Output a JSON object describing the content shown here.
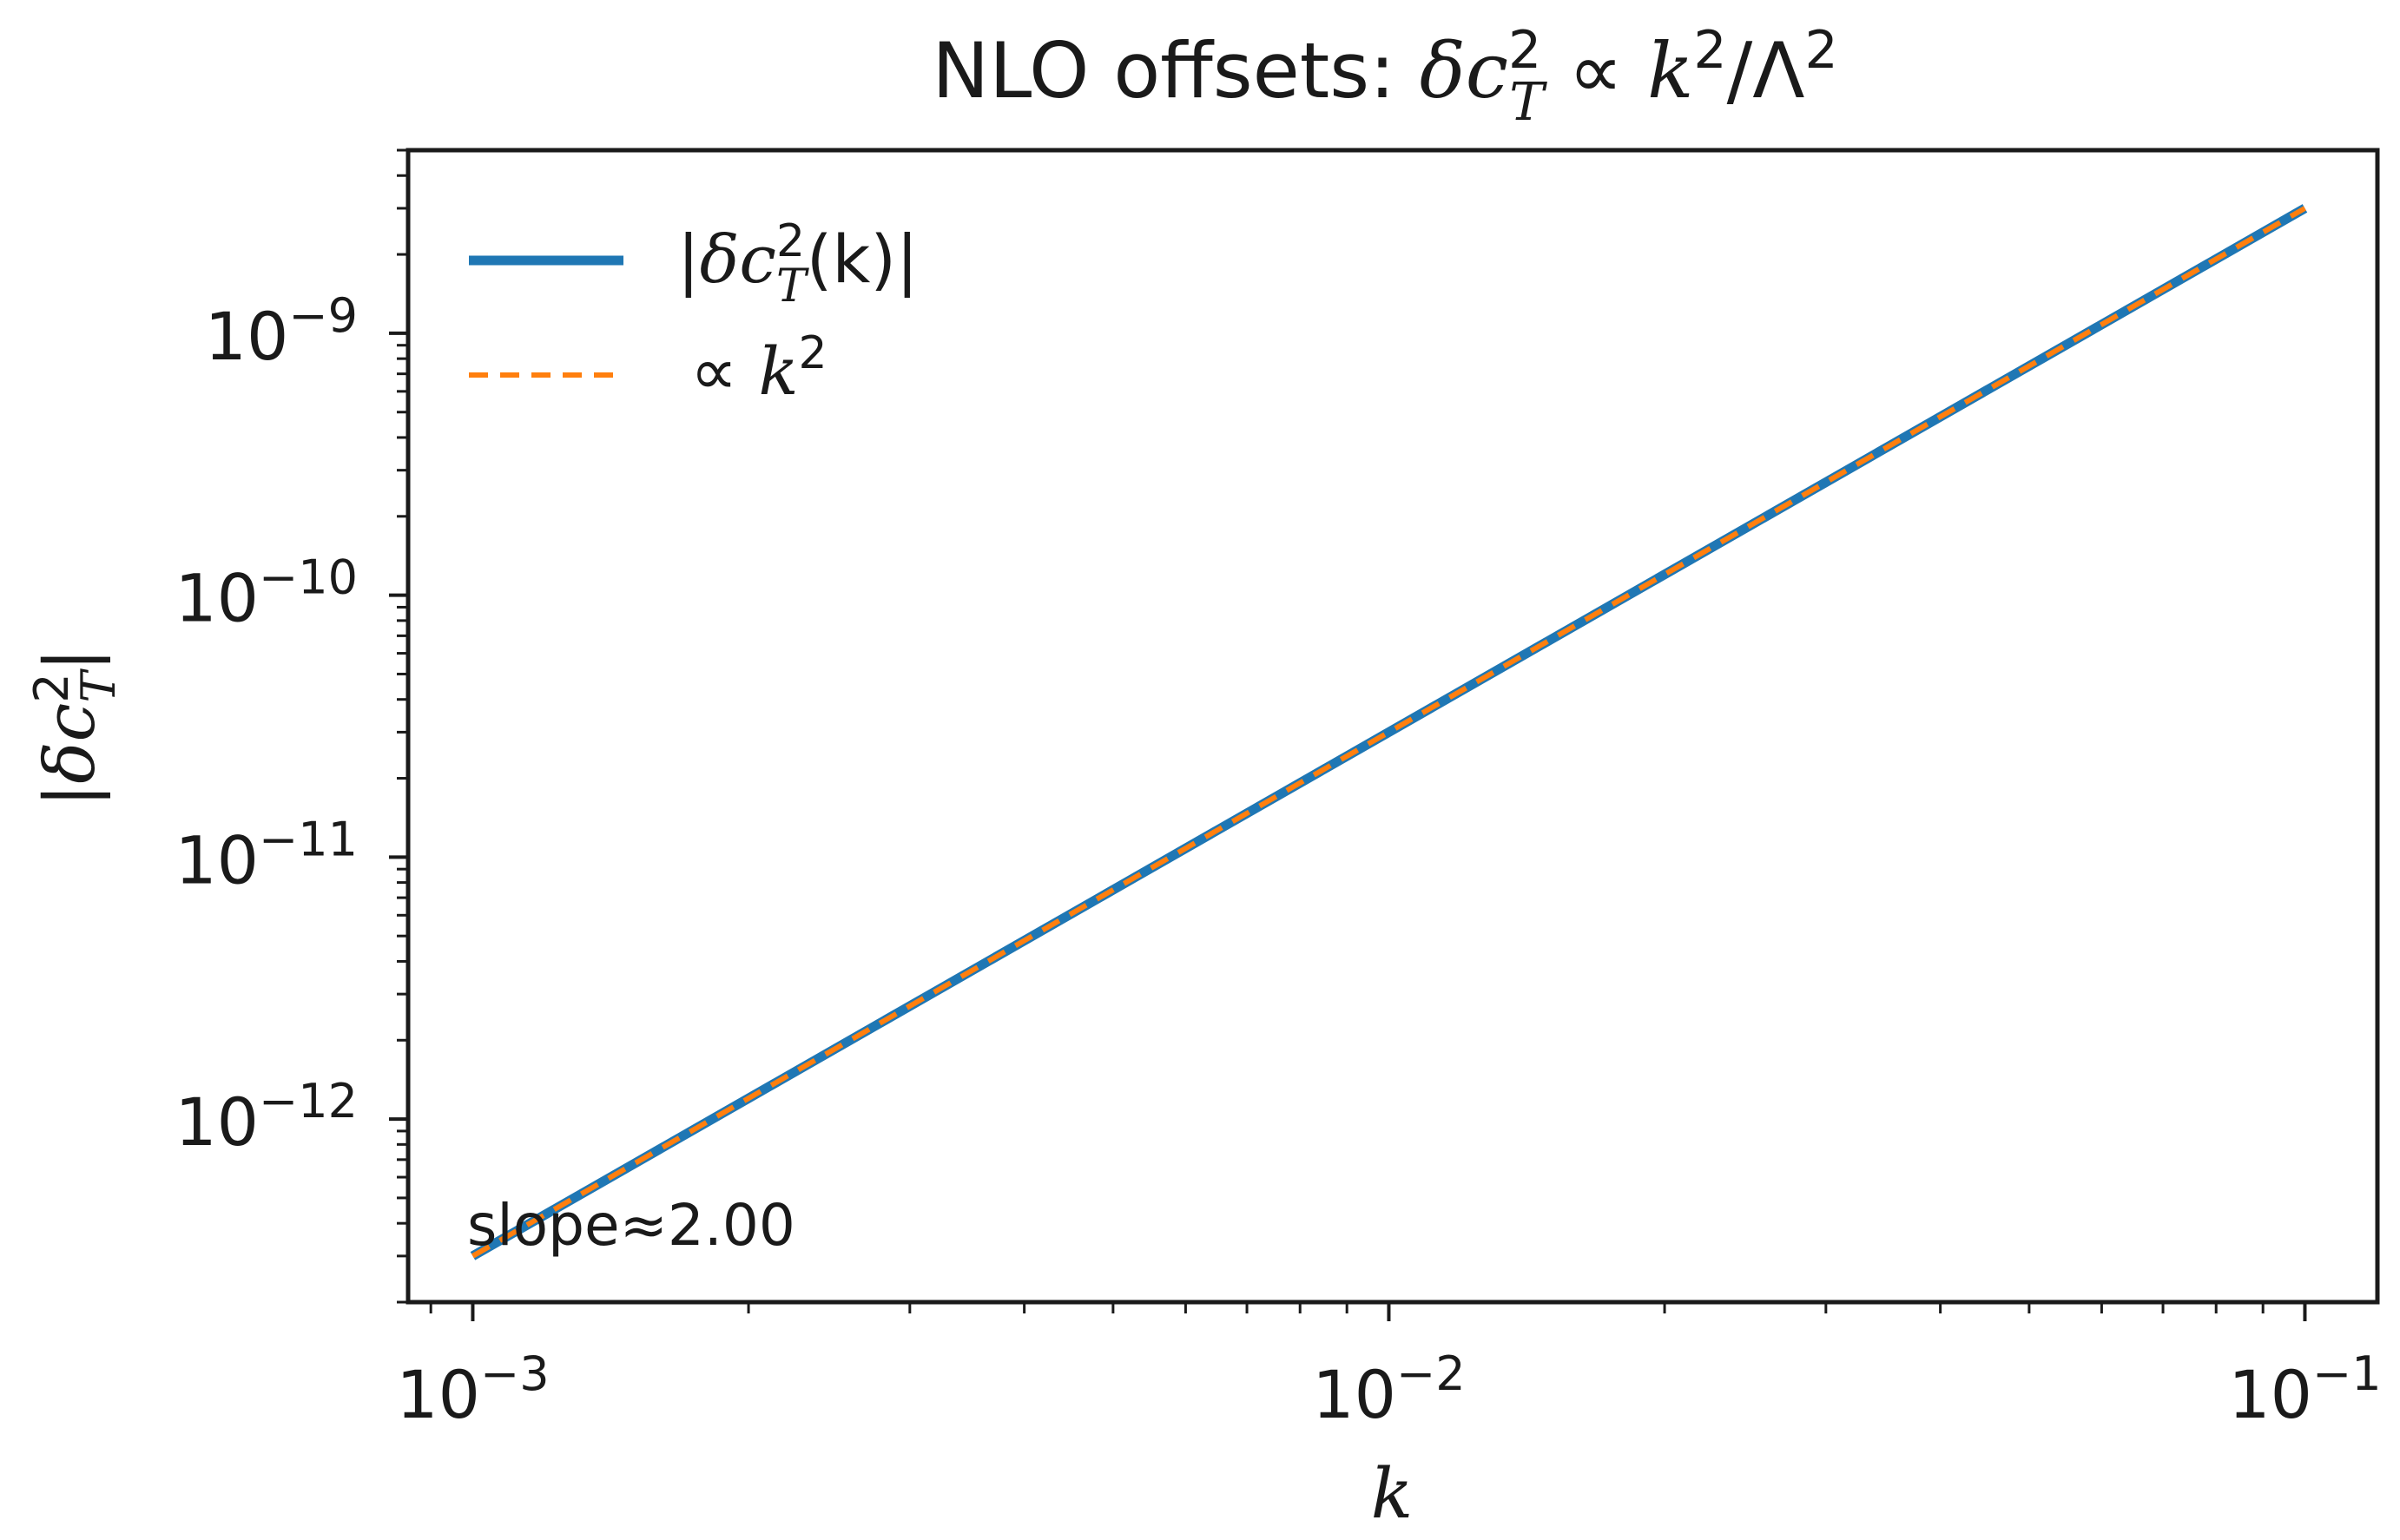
{
  "chart_data": {
    "type": "line",
    "title": {
      "prefix": "NLO offsets: ",
      "delta": "δ",
      "c": "c",
      "c_sup": "2",
      "c_sub": "T",
      "propto": " ∝ ",
      "k": "k",
      "k_sup": "2",
      "slash": "/",
      "lambda": "Λ",
      "lambda_sup": "2"
    },
    "xlabel": "k",
    "ylabel": {
      "bar_open": "|",
      "delta": "δ",
      "c": "c",
      "sup": "2",
      "sub": "T",
      "bar_close": "|"
    },
    "xscale": "log",
    "yscale": "log",
    "xlim": [
      0.00085,
      0.12
    ],
    "ylim": [
      2e-13,
      5e-09
    ],
    "grid": false,
    "legend_position": "top-left",
    "x_ticks": [
      {
        "value": 0.001,
        "base": "10",
        "exp": "−3"
      },
      {
        "value": 0.01,
        "base": "10",
        "exp": "−2"
      },
      {
        "value": 0.1,
        "base": "10",
        "exp": "−1"
      }
    ],
    "y_ticks": [
      {
        "value": 1e-12,
        "base": "10",
        "exp": "−12"
      },
      {
        "value": 1e-11,
        "base": "10",
        "exp": "−11"
      },
      {
        "value": 1e-10,
        "base": "10",
        "exp": "−10"
      },
      {
        "value": 1e-09,
        "base": "10",
        "exp": "−9"
      }
    ],
    "series": [
      {
        "name": {
          "bar_open": "|",
          "delta": "δ",
          "c": "c",
          "sup": "2",
          "sub": "T",
          "arg": "(k)",
          "bar_close": "|"
        },
        "style": "solid",
        "color": "#1f77b4",
        "x": [
          0.001,
          0.1
        ],
        "y": [
          3e-13,
          3e-09
        ]
      },
      {
        "name": {
          "propto": "∝ ",
          "k": "k",
          "sup": "2"
        },
        "style": "dashed",
        "color": "#ff7f0e",
        "x": [
          0.001,
          0.1
        ],
        "y": [
          3e-13,
          3e-09
        ]
      }
    ],
    "annotation": "slope≈2.00"
  }
}
